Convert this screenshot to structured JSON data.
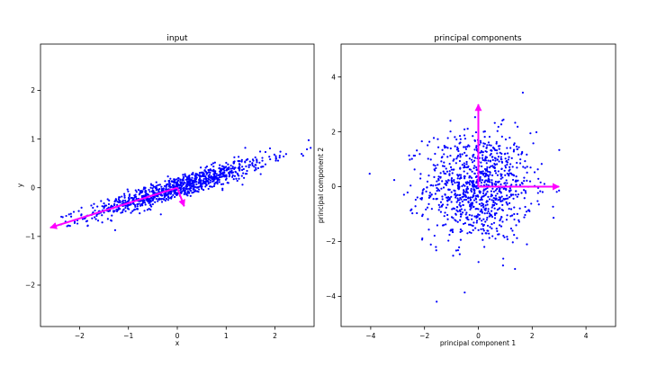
{
  "chart_data": [
    {
      "type": "scatter",
      "title": "input",
      "xlabel": "x",
      "ylabel": "y",
      "xlim": [
        -2.8,
        2.8
      ],
      "ylim": [
        -2.85,
        2.95
      ],
      "xticks": [
        -2,
        -1,
        0,
        1,
        2
      ],
      "yticks": [
        -2,
        -1,
        0,
        1,
        2
      ],
      "xtick_labels": [
        "−2",
        "−1",
        "0",
        "1",
        "2"
      ],
      "ytick_labels": [
        "−2",
        "−1",
        "0",
        "1",
        "2"
      ],
      "grid": false,
      "point_color": "#0000ff",
      "distribution": {
        "n": 1000,
        "kind": "correlated-gaussian",
        "major_axis_direction_deg": 17,
        "major_std": 0.95,
        "minor_std": 0.11
      },
      "arrows": [
        {
          "x0": 0,
          "y0": 0,
          "x1": -2.6,
          "y1": -0.82
        },
        {
          "x0": 0,
          "y0": 0,
          "x1": 0.14,
          "y1": -0.38
        }
      ],
      "arrow_color": "#ff00ff"
    },
    {
      "type": "scatter",
      "title": "principal components",
      "xlabel": "principal component 1",
      "ylabel": "principal component 2",
      "xlim": [
        -5.1,
        5.1
      ],
      "ylim": [
        -5.1,
        5.2
      ],
      "xticks": [
        -4,
        -2,
        0,
        2,
        4
      ],
      "yticks": [
        -4,
        -2,
        0,
        2,
        4
      ],
      "xtick_labels": [
        "−4",
        "−2",
        "0",
        "2",
        "4"
      ],
      "ytick_labels": [
        "−4",
        "−2",
        "0",
        "2",
        "4"
      ],
      "grid": false,
      "point_color": "#0000ff",
      "distribution": {
        "n": 1000,
        "kind": "standardized-gaussian",
        "std": 1.0
      },
      "arrows": [
        {
          "x0": 0,
          "y0": 0,
          "x1": 3.0,
          "y1": 0.0
        },
        {
          "x0": 0,
          "y0": 0,
          "x1": 0.0,
          "y1": 3.0
        }
      ],
      "arrow_color": "#ff00ff"
    }
  ]
}
